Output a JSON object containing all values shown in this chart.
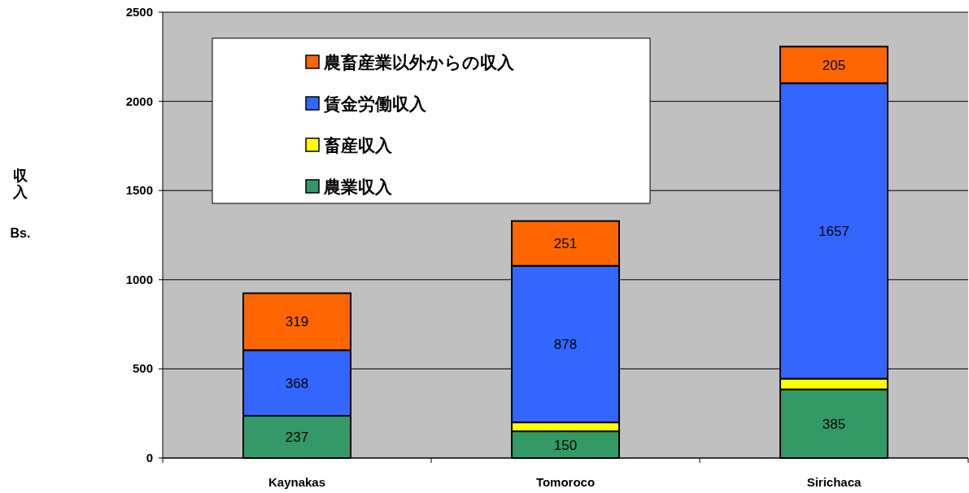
{
  "chart_data": {
    "type": "bar",
    "stacked": true,
    "ylabel": "収入 Bs.",
    "categories": [
      "Kaynakas",
      "Tomoroco",
      "Sirichaca"
    ],
    "series": [
      {
        "name": "農業収入",
        "color": "#339966",
        "values": [
          237,
          150,
          385
        ],
        "value_labels": [
          "237",
          "150",
          "385"
        ]
      },
      {
        "name": "畜産収入",
        "color": "#ffff00",
        "values": [
          null,
          50,
          60
        ],
        "value_labels": [
          null,
          null,
          null
        ]
      },
      {
        "name": "賃金労働収入",
        "color": "#3366ff",
        "values": [
          368,
          878,
          1657
        ],
        "value_labels": [
          "368",
          "878",
          "1657"
        ]
      },
      {
        "name": "農畜産業以外からの収入",
        "color": "#ff6600",
        "values": [
          319,
          251,
          205
        ],
        "value_labels": [
          "319",
          "251",
          "205"
        ]
      }
    ],
    "ylim": [
      0,
      2500
    ],
    "yticks": [
      0,
      500,
      1000,
      1500,
      2000,
      2500
    ],
    "grid": "y",
    "legend": "top left"
  }
}
